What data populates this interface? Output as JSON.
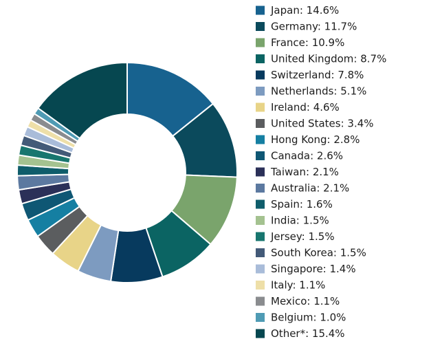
{
  "chart_data": {
    "type": "pie",
    "style": "donut",
    "legend_position": "right",
    "slices": [
      {
        "label": "Japan: 14.6%",
        "value": 14.6,
        "color": "#17628f"
      },
      {
        "label": "Germany: 11.7%",
        "value": 11.7,
        "color": "#0b4a5c"
      },
      {
        "label": "France: 10.9%",
        "value": 10.9,
        "color": "#7aa46c"
      },
      {
        "label": "United Kingdom: 8.7%",
        "value": 8.7,
        "color": "#0b6463"
      },
      {
        "label": "Switzerland: 7.8%",
        "value": 7.8,
        "color": "#073a5e"
      },
      {
        "label": "Netherlands: 5.1%",
        "value": 5.1,
        "color": "#7d9bc0"
      },
      {
        "label": "Ireland: 4.6%",
        "value": 4.6,
        "color": "#e8d488"
      },
      {
        "label": "United States: 3.4%",
        "value": 3.4,
        "color": "#5b5d5f"
      },
      {
        "label": "Hong Kong: 2.8%",
        "value": 2.8,
        "color": "#157fa2"
      },
      {
        "label": "Canada: 2.6%",
        "value": 2.6,
        "color": "#0f5774"
      },
      {
        "label": "Taiwan: 2.1%",
        "value": 2.1,
        "color": "#2b3058"
      },
      {
        "label": "Australia: 2.1%",
        "value": 2.1,
        "color": "#5c79a0"
      },
      {
        "label": "Spain: 1.6%",
        "value": 1.6,
        "color": "#0f5d6b"
      },
      {
        "label": "India: 1.5%",
        "value": 1.5,
        "color": "#a4c290"
      },
      {
        "label": "Jersey: 1.5%",
        "value": 1.5,
        "color": "#18766f"
      },
      {
        "label": "South Korea: 1.5%",
        "value": 1.5,
        "color": "#435a78"
      },
      {
        "label": "Singapore: 1.4%",
        "value": 1.4,
        "color": "#a9bcd9"
      },
      {
        "label": "Italy: 1.1%",
        "value": 1.1,
        "color": "#eedfa8"
      },
      {
        "label": "Mexico: 1.1%",
        "value": 1.1,
        "color": "#8a8c8f"
      },
      {
        "label": "Belgium: 1.0%",
        "value": 1.0,
        "color": "#4f9bb4"
      },
      {
        "label": "Other*: 15.4%",
        "value": 15.4,
        "color": "#064750"
      }
    ]
  }
}
